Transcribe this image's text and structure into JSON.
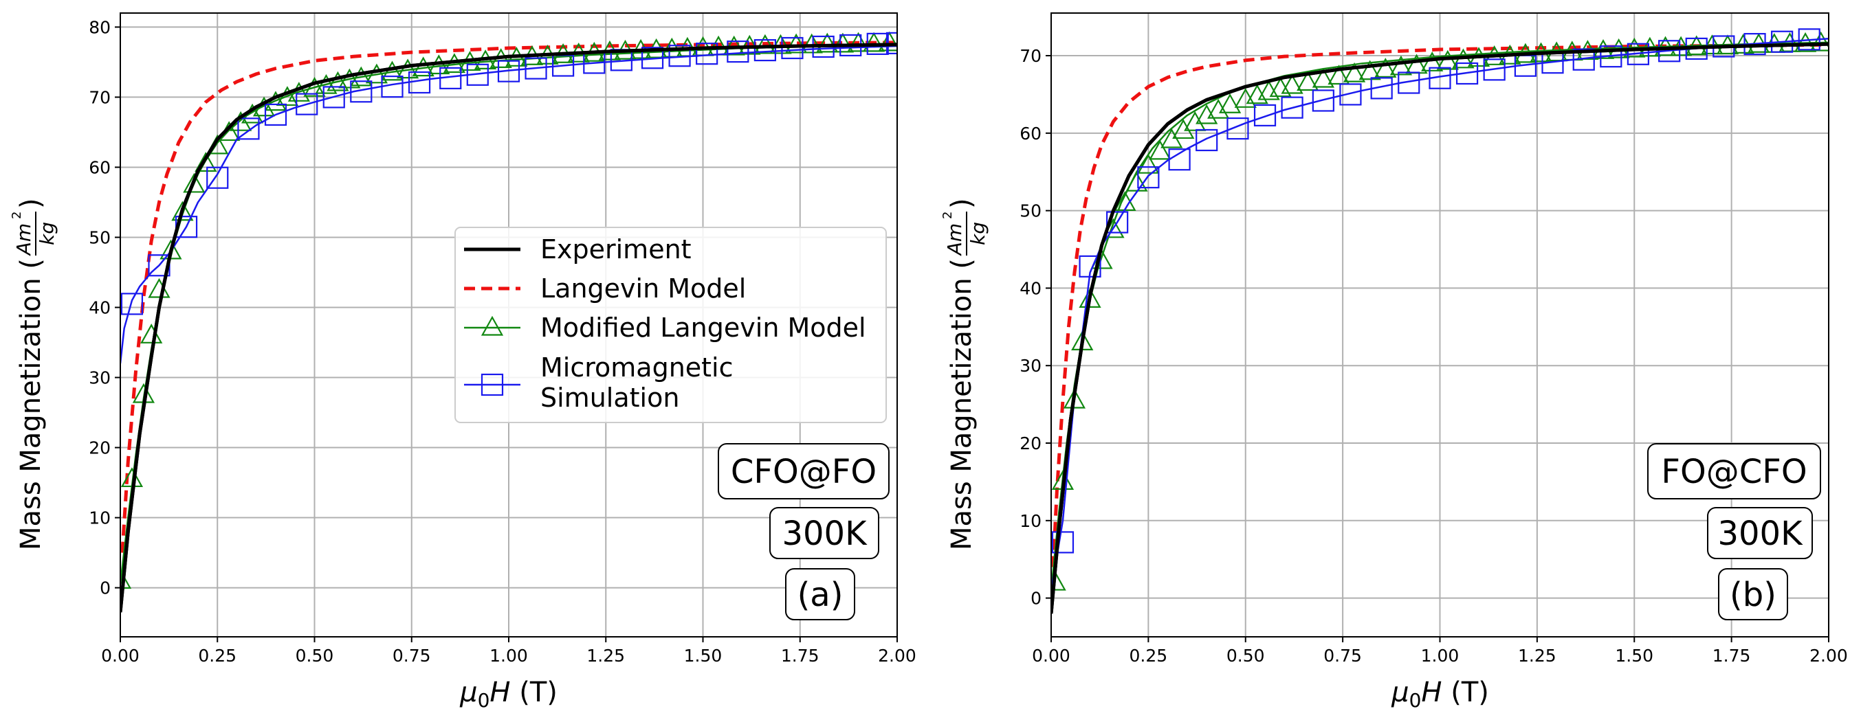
{
  "chart_data": [
    {
      "type": "line",
      "panel_label": "(a)",
      "sample_label": "CFO@FO",
      "temperature_label": "300K",
      "xlabel_symbol": "μ",
      "xlabel_sub": "0",
      "xlabel_var": "H",
      "xlabel_unit": " (T)",
      "ylabel_text": "Mass Magnetization (",
      "ylabel_num": "Am",
      "ylabel_sup": "2",
      "ylabel_den": "kg",
      "ylabel_close": ")",
      "xlim": [
        0,
        2.0
      ],
      "ylim": [
        -7,
        82
      ],
      "xticks": [
        0,
        0.25,
        0.5,
        0.75,
        1.0,
        1.25,
        1.5,
        1.75,
        2.0
      ],
      "xtick_labels": [
        "0.00",
        "0.25",
        "0.50",
        "0.75",
        "1.00",
        "1.25",
        "1.50",
        "1.75",
        "2.00"
      ],
      "yticks": [
        0,
        10,
        20,
        30,
        40,
        50,
        60,
        70,
        80
      ],
      "ytick_labels": [
        "0",
        "10",
        "20",
        "30",
        "40",
        "50",
        "60",
        "70",
        "80"
      ],
      "grid": true,
      "legend": {
        "position": "center-right",
        "entries": [
          {
            "label": "Experiment",
            "style": "solid",
            "color": "#000000"
          },
          {
            "label": "Langevin Model",
            "style": "dashed",
            "color": "#ee1111"
          },
          {
            "label": "Modified Langevin Model",
            "style": "triangle",
            "color": "#118811"
          },
          {
            "label": "Micromagnetic",
            "label2": "Simulation",
            "style": "square",
            "color": "#1a1aee"
          }
        ]
      },
      "series": [
        {
          "name": "Experiment",
          "color": "#000000",
          "style": "solid",
          "width": 5,
          "x": [
            0,
            0.02,
            0.05,
            0.08,
            0.1,
            0.13,
            0.16,
            0.2,
            0.25,
            0.3,
            0.35,
            0.4,
            0.5,
            0.6,
            0.75,
            1.0,
            1.25,
            1.5,
            1.75,
            2.0
          ],
          "y": [
            -3.5,
            8,
            22,
            33,
            40,
            48,
            54,
            59.5,
            64,
            66.8,
            68.6,
            70,
            72,
            73.2,
            74.5,
            75.8,
            76.5,
            77,
            77.3,
            77.5
          ]
        },
        {
          "name": "Langevin Model",
          "color": "#ee1111",
          "style": "dashed",
          "width": 5,
          "x": [
            0.005,
            0.02,
            0.04,
            0.06,
            0.08,
            0.1,
            0.12,
            0.15,
            0.18,
            0.22,
            0.26,
            0.3,
            0.35,
            0.4,
            0.5,
            0.6,
            0.75,
            1.0,
            1.25,
            1.5,
            1.75,
            2.0
          ],
          "y": [
            5,
            18,
            31,
            41.5,
            49.5,
            55,
            59,
            63.5,
            66.5,
            69.3,
            71,
            72.2,
            73.3,
            74.1,
            75.2,
            75.8,
            76.4,
            77,
            77.3,
            77.5,
            77.7,
            77.8
          ]
        },
        {
          "name": "Modified Langevin Model",
          "color": "#118811",
          "style": "solid",
          "width": 2.5,
          "x": [
            0,
            0.02,
            0.04,
            0.06,
            0.08,
            0.1,
            0.12,
            0.14,
            0.16,
            0.18,
            0.2,
            0.22,
            0.25,
            0.28,
            0.32,
            0.36,
            0.4,
            0.45,
            0.5,
            0.55,
            0.6,
            0.7,
            0.8,
            0.9,
            1.0,
            1.2,
            1.4,
            1.6,
            1.8,
            2.0
          ],
          "y": [
            0.5,
            10,
            19,
            27,
            34,
            40,
            45,
            49.5,
            53.3,
            56.4,
            59,
            61,
            63.5,
            65.3,
            67.2,
            68.5,
            69.5,
            70.6,
            71.4,
            72.1,
            72.7,
            73.6,
            74.3,
            74.9,
            75.3,
            76,
            76.5,
            77,
            77.3,
            77.6
          ],
          "marker_x": [
            0,
            0.03,
            0.06,
            0.08,
            0.1,
            0.13,
            0.16,
            0.19,
            0.22,
            0.25,
            0.28,
            0.31,
            0.34,
            0.37,
            0.4,
            0.43,
            0.46,
            0.5,
            0.53,
            0.56,
            0.59,
            0.62,
            0.66,
            0.7,
            0.74,
            0.78,
            0.82,
            0.86,
            0.9,
            0.94,
            0.98,
            1.02,
            1.06,
            1.1,
            1.14,
            1.18,
            1.22,
            1.26,
            1.3,
            1.34,
            1.38,
            1.42,
            1.46,
            1.5,
            1.54,
            1.58,
            1.62,
            1.66,
            1.7,
            1.74,
            1.78,
            1.82,
            1.86,
            1.9,
            1.94,
            1.98
          ],
          "marker_y": [
            1,
            15.5,
            27.5,
            36,
            42.5,
            48,
            53.5,
            57.5,
            60.5,
            63,
            64.9,
            66.3,
            67.4,
            68.4,
            69.2,
            69.9,
            70.5,
            71.2,
            71.6,
            72,
            72.4,
            72.7,
            73.1,
            73.5,
            73.8,
            74.1,
            74.4,
            74.6,
            74.9,
            75.1,
            75.3,
            75.5,
            75.7,
            75.8,
            76,
            76.1,
            76.2,
            76.4,
            76.5,
            76.6,
            76.7,
            76.8,
            76.9,
            77,
            77.1,
            77.1,
            77.2,
            77.3,
            77.3,
            77.4,
            77.4,
            77.5,
            77.5,
            77.6,
            77.6,
            77.7
          ]
        },
        {
          "name": "Micromagnetic Simulation",
          "color": "#1a1aee",
          "style": "solid",
          "width": 2.5,
          "x": [
            0,
            0.01,
            0.03,
            0.05,
            0.08,
            0.1,
            0.13,
            0.17,
            0.2,
            0.25,
            0.3,
            0.35,
            0.4,
            0.45,
            0.5,
            0.6,
            0.7,
            0.8,
            1.0,
            1.2,
            1.4,
            1.6,
            1.8,
            2.0
          ],
          "y": [
            32,
            37,
            41,
            43,
            45,
            46,
            48,
            51.5,
            55,
            59,
            64,
            66,
            67.5,
            68.5,
            69.3,
            70.8,
            71.8,
            72.6,
            73.8,
            74.8,
            75.6,
            76.3,
            76.9,
            77.3
          ],
          "marker_x": [
            0.03,
            0.1,
            0.17,
            0.25,
            0.33,
            0.4,
            0.48,
            0.55,
            0.62,
            0.7,
            0.77,
            0.85,
            0.92,
            1.0,
            1.07,
            1.14,
            1.22,
            1.29,
            1.37,
            1.44,
            1.51,
            1.59,
            1.66,
            1.73,
            1.81,
            1.88,
            1.95,
            2.0
          ],
          "marker_y": [
            40.5,
            46,
            51.5,
            58.5,
            65.5,
            67.5,
            69,
            70,
            70.8,
            71.5,
            72.1,
            72.7,
            73.2,
            73.7,
            74.1,
            74.5,
            74.9,
            75.3,
            75.6,
            75.9,
            76.2,
            76.5,
            76.7,
            77,
            77.2,
            77.4,
            77.6,
            77.7
          ]
        }
      ]
    },
    {
      "type": "line",
      "panel_label": "(b)",
      "sample_label": "FO@CFO",
      "temperature_label": "300K",
      "xlabel_symbol": "μ",
      "xlabel_sub": "0",
      "xlabel_var": "H",
      "xlabel_unit": " (T)",
      "ylabel_text": "Mass Magnetization (",
      "ylabel_num": "Am",
      "ylabel_sup": "2",
      "ylabel_den": "kg",
      "ylabel_close": ")",
      "xlim": [
        0,
        2.0
      ],
      "ylim": [
        -5,
        75.5
      ],
      "xticks": [
        0,
        0.25,
        0.5,
        0.75,
        1.0,
        1.25,
        1.5,
        1.75,
        2.0
      ],
      "xtick_labels": [
        "0.00",
        "0.25",
        "0.50",
        "0.75",
        "1.00",
        "1.25",
        "1.50",
        "1.75",
        "2.00"
      ],
      "yticks": [
        0,
        10,
        20,
        30,
        40,
        50,
        60,
        70
      ],
      "ytick_labels": [
        "0",
        "10",
        "20",
        "30",
        "40",
        "50",
        "60",
        "70"
      ],
      "grid": true,
      "series": [
        {
          "name": "Experiment",
          "color": "#000000",
          "style": "solid",
          "width": 5,
          "x": [
            0,
            0.02,
            0.05,
            0.08,
            0.1,
            0.13,
            0.16,
            0.2,
            0.25,
            0.3,
            0.35,
            0.4,
            0.5,
            0.6,
            0.75,
            1.0,
            1.25,
            1.5,
            1.75,
            2.0
          ],
          "y": [
            -2,
            9,
            23,
            33,
            39,
            45.5,
            50,
            54.5,
            58.5,
            61.2,
            63,
            64.3,
            66,
            67.2,
            68.3,
            69.6,
            70.3,
            70.8,
            71.2,
            71.5
          ]
        },
        {
          "name": "Langevin Model",
          "color": "#ee1111",
          "style": "dashed",
          "width": 5,
          "x": [
            0.005,
            0.015,
            0.03,
            0.045,
            0.06,
            0.075,
            0.09,
            0.11,
            0.13,
            0.16,
            0.2,
            0.25,
            0.3,
            0.35,
            0.4,
            0.5,
            0.6,
            0.75,
            1.0,
            1.25,
            1.5,
            1.75,
            2.0
          ],
          "y": [
            4,
            14,
            25.5,
            35,
            42,
            47.5,
            51.5,
            55.5,
            58.5,
            61.5,
            64,
            66,
            67.2,
            68,
            68.6,
            69.4,
            69.9,
            70.3,
            70.8,
            71,
            71.2,
            71.3,
            71.4
          ]
        },
        {
          "name": "Modified Langevin Model",
          "color": "#118811",
          "style": "solid",
          "width": 2.5,
          "x": [
            0,
            0.02,
            0.04,
            0.06,
            0.08,
            0.1,
            0.12,
            0.15,
            0.18,
            0.22,
            0.26,
            0.3,
            0.35,
            0.4,
            0.45,
            0.5,
            0.6,
            0.7,
            0.8,
            1.0,
            1.2,
            1.4,
            1.6,
            1.8,
            2.0
          ],
          "y": [
            1,
            11,
            20,
            27.5,
            33.5,
            38.5,
            42.5,
            47,
            51,
            55,
            58,
            60.2,
            62.3,
            63.8,
            65,
            66,
            67.4,
            68.3,
            69,
            69.9,
            70.5,
            70.9,
            71.2,
            71.5,
            71.7
          ],
          "marker_x": [
            0.01,
            0.03,
            0.06,
            0.08,
            0.1,
            0.13,
            0.16,
            0.19,
            0.22,
            0.25,
            0.28,
            0.31,
            0.34,
            0.37,
            0.4,
            0.43,
            0.46,
            0.5,
            0.53,
            0.56,
            0.59,
            0.62,
            0.66,
            0.7,
            0.74,
            0.78,
            0.82,
            0.86,
            0.9,
            0.94,
            0.98,
            1.02,
            1.06,
            1.1,
            1.14,
            1.18,
            1.22,
            1.26,
            1.3,
            1.34,
            1.38,
            1.42,
            1.46,
            1.5,
            1.54,
            1.58,
            1.62,
            1.66,
            1.7,
            1.74,
            1.78,
            1.82,
            1.86,
            1.9,
            1.94,
            1.98
          ],
          "marker_y": [
            2,
            15,
            25.5,
            33,
            38.5,
            43.5,
            47.5,
            51,
            53.5,
            55.8,
            57.6,
            59.1,
            60.3,
            61.3,
            62.2,
            62.9,
            63.6,
            64.3,
            64.8,
            65.3,
            65.7,
            66.1,
            66.5,
            66.9,
            67.3,
            67.6,
            67.9,
            68.2,
            68.5,
            68.7,
            69,
            69.2,
            69.4,
            69.6,
            69.8,
            69.9,
            70.1,
            70.2,
            70.3,
            70.4,
            70.5,
            70.6,
            70.7,
            70.8,
            70.9,
            71,
            71,
            71.1,
            71.2,
            71.2,
            71.3,
            71.4,
            71.4,
            71.5,
            71.5,
            71.6
          ]
        },
        {
          "name": "Micromagnetic Simulation",
          "color": "#1a1aee",
          "style": "solid",
          "width": 2.5,
          "x": [
            0,
            0.03,
            0.06,
            0.1,
            0.13,
            0.17,
            0.2,
            0.25,
            0.3,
            0.35,
            0.4,
            0.5,
            0.6,
            0.7,
            0.8,
            0.9,
            1.0,
            1.2,
            1.4,
            1.6,
            1.8,
            2.0
          ],
          "y": [
            1,
            10,
            26,
            42,
            45.5,
            48.5,
            51,
            54.5,
            56.5,
            58,
            59.3,
            61.3,
            63,
            64.3,
            65.5,
            66.5,
            67.3,
            68.7,
            69.8,
            70.7,
            71.5,
            72.2
          ],
          "marker_x": [
            0.03,
            0.1,
            0.17,
            0.25,
            0.33,
            0.4,
            0.48,
            0.55,
            0.62,
            0.7,
            0.77,
            0.85,
            0.92,
            1.0,
            1.07,
            1.14,
            1.22,
            1.29,
            1.37,
            1.44,
            1.51,
            1.59,
            1.66,
            1.73,
            1.81,
            1.88,
            1.95
          ],
          "marker_y": [
            7.2,
            42.8,
            48.5,
            54.3,
            56.6,
            59.1,
            60.6,
            62.3,
            63.3,
            64.2,
            65,
            65.8,
            66.5,
            67.1,
            67.7,
            68.2,
            68.7,
            69.1,
            69.5,
            69.9,
            70.2,
            70.6,
            70.9,
            71.2,
            71.5,
            71.8,
            72.1
          ]
        }
      ]
    }
  ]
}
